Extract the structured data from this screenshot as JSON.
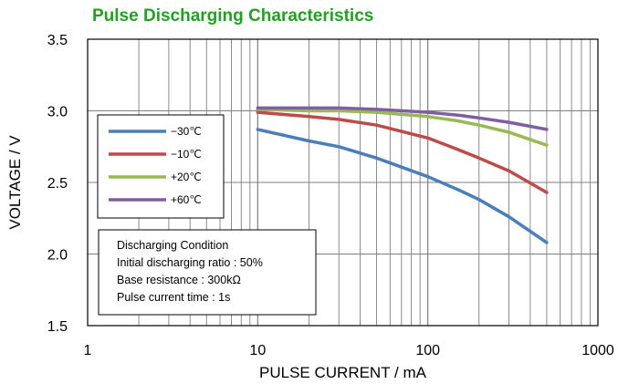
{
  "chart_data": {
    "type": "line",
    "title": "Pulse Discharging Characteristics",
    "title_color": "#22a022",
    "xlabel": "PULSE CURRENT / mA",
    "ylabel": "VOLTAGE / V",
    "x_scale": "log",
    "xlim": [
      1,
      1000
    ],
    "ylim": [
      1.5,
      3.5
    ],
    "x_ticks": [
      "1",
      "10",
      "100",
      "1000"
    ],
    "y_ticks": [
      "1.5",
      "2.0",
      "2.5",
      "3.0",
      "3.5"
    ],
    "grid": true,
    "legend_position": "upper-left",
    "x": [
      10,
      20,
      30,
      50,
      100,
      150,
      200,
      300,
      500
    ],
    "series": [
      {
        "name": "−30℃",
        "color": "#4a7ebb",
        "values": [
          2.87,
          2.79,
          2.75,
          2.67,
          2.54,
          2.45,
          2.38,
          2.26,
          2.08
        ]
      },
      {
        "name": "−10℃",
        "color": "#be4b48",
        "values": [
          2.99,
          2.96,
          2.94,
          2.9,
          2.81,
          2.73,
          2.67,
          2.58,
          2.43
        ]
      },
      {
        "name": "+20℃",
        "color": "#98b954",
        "values": [
          3.01,
          3.0,
          3.0,
          2.99,
          2.96,
          2.93,
          2.9,
          2.85,
          2.76
        ]
      },
      {
        "name": "+60℃",
        "color": "#7d60a0",
        "values": [
          3.02,
          3.02,
          3.02,
          3.01,
          2.99,
          2.97,
          2.95,
          2.92,
          2.87
        ]
      }
    ],
    "annotation": [
      "Discharging Condition",
      "Initial discharging ratio : 50%",
      "Base resistance : 300kΩ",
      "Pulse current time : 1s"
    ]
  }
}
